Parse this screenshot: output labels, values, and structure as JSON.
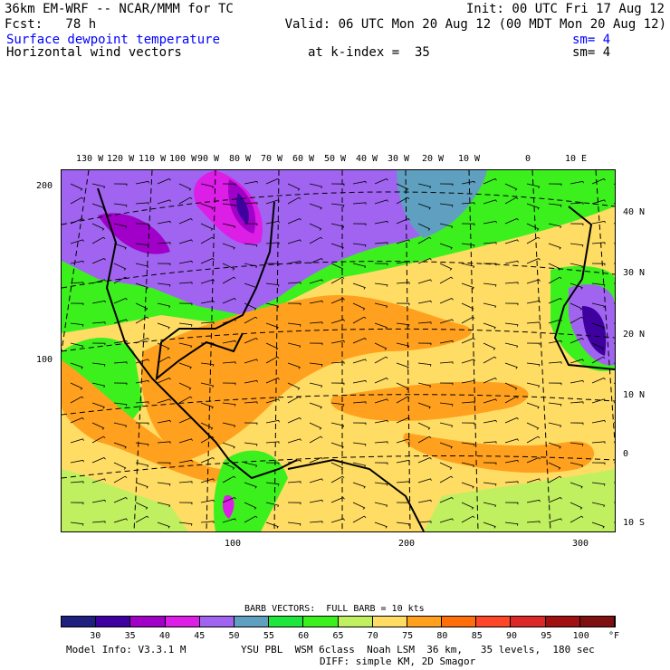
{
  "header": {
    "model": "36km EM-WRF -- NCAR/MMM for TC",
    "init": "Init: 00 UTC Fri 17 Aug 12",
    "fcst": "Fcst:   78 h",
    "valid": "Valid: 06 UTC Mon 20 Aug 12 (00 MDT Mon 20 Aug 12)",
    "field1": "Surface dewpoint temperature",
    "field1_sm": "sm= 4",
    "field2": "Horizontal wind vectors",
    "kindex": "at k-index =  35",
    "field2_sm": "sm= 4"
  },
  "map": {
    "lon_labels": [
      "130 W",
      "120 W",
      "110 W",
      "100 W",
      "90 W",
      "80 W",
      "70 W",
      "60 W",
      "50 W",
      "40 W",
      "30 W",
      "20 W",
      "10 W",
      "0",
      "10 E"
    ],
    "lat_labels": [
      "40 N",
      "30 N",
      "20 N",
      "10 N",
      "0",
      "10 S"
    ],
    "y_grid_labels": [
      "200",
      "100"
    ],
    "x_grid_labels": [
      "100",
      "200",
      "300"
    ]
  },
  "legend": {
    "barb_note": "BARB VECTORS:  FULL BARB = 10 kts",
    "colors": [
      "#1f1f7f",
      "#3f00a0",
      "#a000c8",
      "#dc1ee6",
      "#a064f0",
      "#5fa0c0",
      "#1ee63c",
      "#3cf01e",
      "#c0f060",
      "#ffdc64",
      "#ffa01e",
      "#ff6e0a",
      "#ff4628",
      "#dc2828",
      "#a01010",
      "#7f1010"
    ],
    "labels": [
      "30",
      "35",
      "40",
      "45",
      "50",
      "55",
      "60",
      "65",
      "70",
      "75",
      "80",
      "85",
      "90",
      "95",
      "100"
    ],
    "unit": "°F"
  },
  "footer": {
    "model_info": "Model Info: V3.3.1 M",
    "physics": "YSU PBL  WSM 6class  Noah LSM  36 km,   35 levels,  180 sec",
    "diff": "DIFF: simple KM, 2D Smagor"
  }
}
